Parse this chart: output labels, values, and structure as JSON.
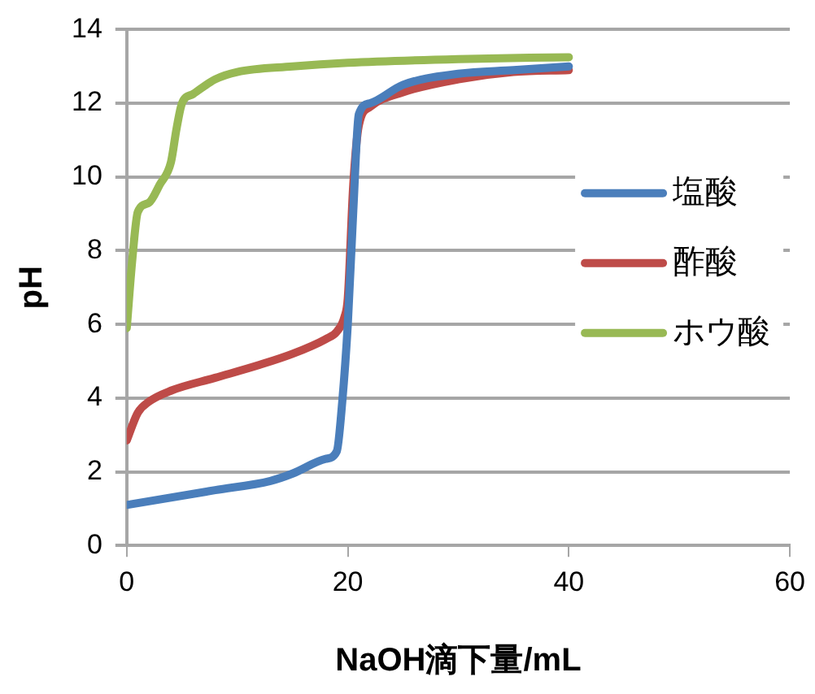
{
  "chart_data": {
    "type": "line",
    "xlabel": "NaOH滴下量/mL",
    "ylabel": "pH",
    "xlim": [
      0,
      60
    ],
    "xticks": [
      0,
      20,
      40,
      60
    ],
    "ylim": [
      0,
      14
    ],
    "yticks": [
      0,
      2,
      4,
      6,
      8,
      10,
      12,
      14
    ],
    "grid": "y",
    "legend": "right",
    "marker": "none",
    "line_style": "solid",
    "series": [
      {
        "name": "塩酸",
        "color": "#4a7ebb",
        "x": [
          0,
          8,
          13,
          15,
          18,
          19,
          19.5,
          20,
          20.5,
          21,
          22,
          25,
          30,
          35,
          40
        ],
        "values": [
          1.1,
          1.5,
          1.75,
          1.95,
          2.35,
          2.55,
          3.9,
          6.0,
          9.1,
          11.7,
          12.0,
          12.5,
          12.8,
          12.9,
          13.0
        ]
      },
      {
        "name": "酢酸",
        "color": "#be4b48",
        "x": [
          0,
          1,
          2,
          4,
          8,
          12,
          15,
          18,
          19,
          19.7,
          20,
          20.5,
          21,
          22,
          25,
          30,
          35,
          40
        ],
        "values": [
          2.85,
          3.6,
          3.9,
          4.2,
          4.55,
          4.9,
          5.2,
          5.6,
          5.8,
          6.2,
          6.7,
          9.8,
          11.4,
          11.9,
          12.3,
          12.65,
          12.85,
          12.9
        ]
      },
      {
        "name": "ホウ酸",
        "color": "#98b954",
        "x": [
          0,
          0.5,
          1,
          2,
          3,
          4,
          4.5,
          5,
          6,
          8,
          10,
          15,
          20,
          30,
          40
        ],
        "values": [
          5.9,
          7.75,
          9.05,
          9.3,
          9.8,
          10.4,
          11.3,
          12.0,
          12.25,
          12.65,
          12.85,
          13.0,
          13.1,
          13.2,
          13.25
        ]
      }
    ]
  }
}
